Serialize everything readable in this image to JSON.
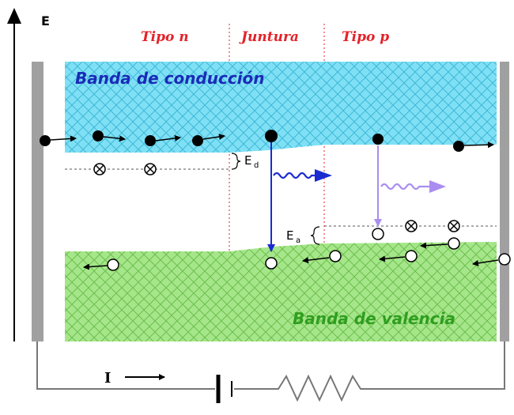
{
  "axis": {
    "energy_label": "E"
  },
  "regions": {
    "n_label": "Tipo n",
    "junction_label": "Juntura",
    "p_label": "Tipo p"
  },
  "bands": {
    "conduction_label": "Banda de conducción",
    "valence_label": "Banda de valencia"
  },
  "levels": {
    "donor_label": "E",
    "donor_sub": "d",
    "acceptor_label": "E",
    "acceptor_sub": "a"
  },
  "circuit": {
    "current_label": "I"
  },
  "colors": {
    "region_text": "#e3222a",
    "conduction_text": "#1a2bb8",
    "valence_text": "#2f9e1f",
    "conduction_fill": "#7fe0f5",
    "valence_fill": "#a6e68a",
    "transition_blue": "#1a2bd0",
    "transition_violet": "#a98df0",
    "electrode": "#a0a0a0"
  }
}
